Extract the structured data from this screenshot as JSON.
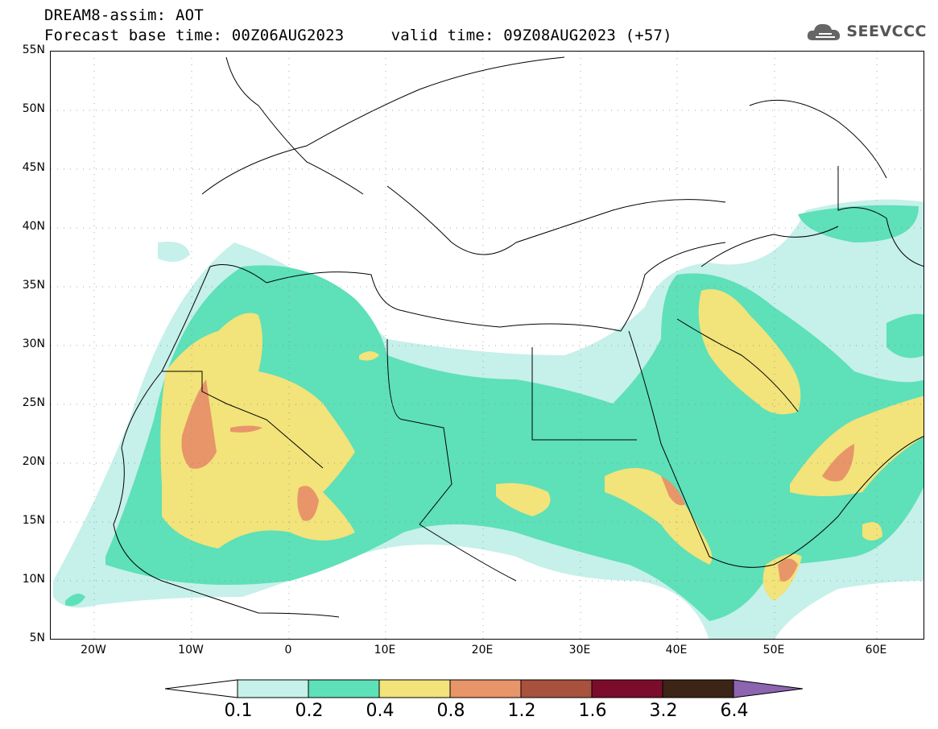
{
  "header": {
    "line1": "DREAM8-assim: AOT",
    "line2": "Forecast base time: 00Z06AUG2023     valid time: 09Z08AUG2023 (+57)"
  },
  "logo": {
    "text": "SEEVCCC",
    "icon": "cloud-icon"
  },
  "map": {
    "lat_labels": [
      "55N",
      "50N",
      "45N",
      "40N",
      "35N",
      "30N",
      "25N",
      "20N",
      "15N",
      "10N",
      "5N"
    ],
    "lon_labels": [
      "20W",
      "10W",
      "0",
      "10E",
      "20E",
      "30E",
      "40E",
      "50E",
      "60E"
    ],
    "lon_range": [
      -25,
      65
    ],
    "lat_range": [
      5,
      55
    ],
    "grid": "dotted"
  },
  "colorbar": {
    "labels": [
      "0.1",
      "0.2",
      "0.4",
      "0.8",
      "1.2",
      "1.6",
      "3.2",
      "6.4"
    ],
    "colors": [
      "#ffffff",
      "#c6f0ea",
      "#5ee0b8",
      "#f2e37a",
      "#e8956a",
      "#a8523e",
      "#7c0c2c",
      "#3c2416",
      "#8c64b0"
    ]
  }
}
